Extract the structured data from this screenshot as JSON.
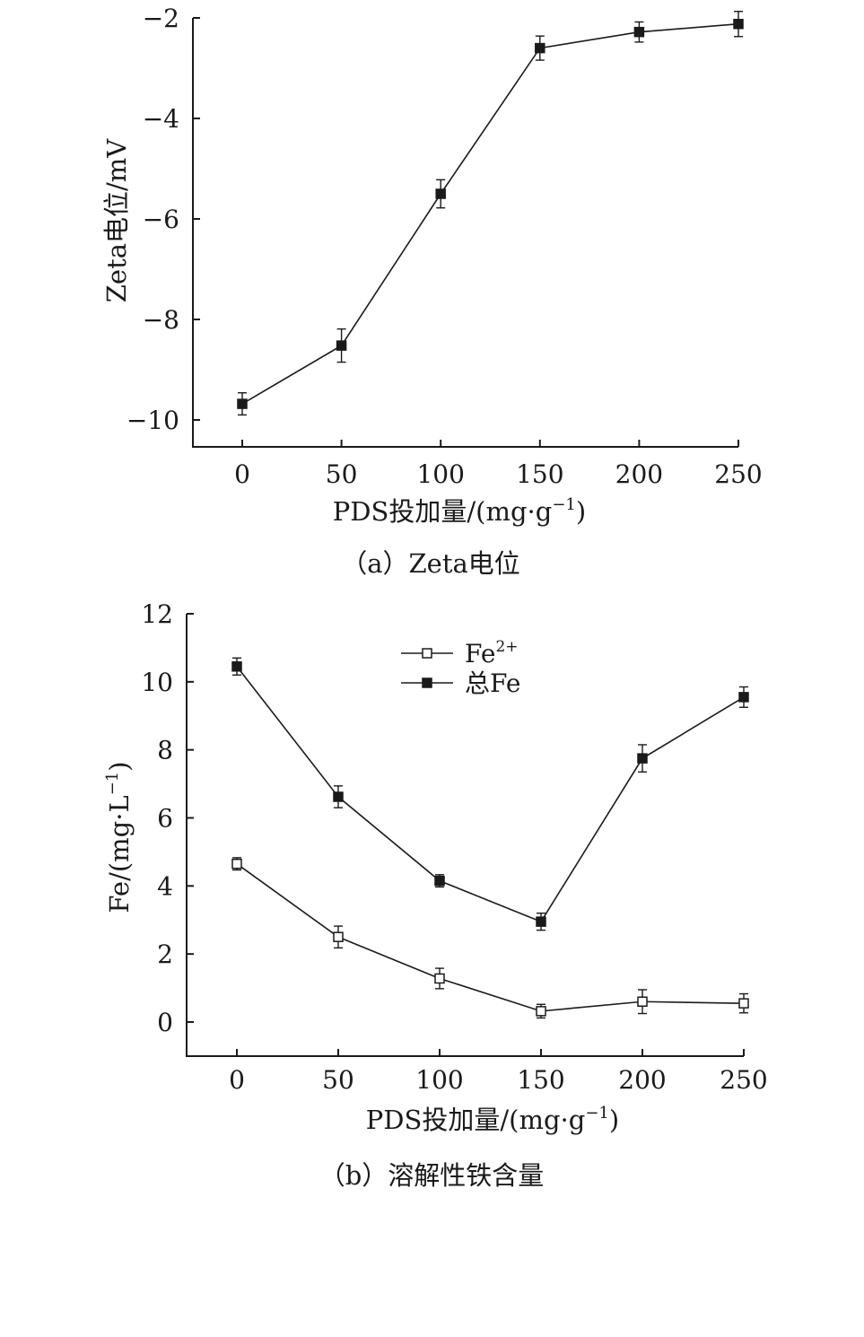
{
  "chart_data": [
    {
      "type": "line",
      "x": [
        0,
        50,
        100,
        150,
        200,
        250
      ],
      "xlim": [
        -25,
        250
      ],
      "ylim": [
        -10.5,
        -2
      ],
      "xticks": [
        0,
        50,
        100,
        150,
        200,
        250
      ],
      "yticks": [
        -10,
        -8,
        -6,
        -4,
        -2
      ],
      "x_tick_labels": [
        "0",
        "50",
        "100",
        "150",
        "200",
        "250"
      ],
      "y_tick_labels": [
        "−10",
        "−8",
        "−6",
        "−4",
        "−2"
      ],
      "xlabel": "PDS投加量/(mg·g",
      "xlabel_sup": "−1",
      "xlabel_end": ")",
      "ylabel": "Zeta电位/mV",
      "caption": "（a）Zeta电位",
      "series": [
        {
          "marker": "filled-square",
          "values": [
            -9.68,
            -8.52,
            -5.5,
            -2.6,
            -2.28,
            -2.12
          ],
          "errors": [
            0.22,
            0.33,
            0.28,
            0.24,
            0.2,
            0.25
          ]
        }
      ]
    },
    {
      "type": "line",
      "x": [
        0,
        50,
        100,
        150,
        200,
        250
      ],
      "xlim": [
        -25,
        250
      ],
      "ylim": [
        -1,
        12
      ],
      "xticks": [
        0,
        50,
        100,
        150,
        200,
        250
      ],
      "yticks": [
        0,
        2,
        4,
        6,
        8,
        10,
        12
      ],
      "x_tick_labels": [
        "0",
        "50",
        "100",
        "150",
        "200",
        "250"
      ],
      "y_tick_labels": [
        "0",
        "2",
        "4",
        "6",
        "8",
        "10",
        "12"
      ],
      "xlabel": "PDS投加量/(mg·g",
      "xlabel_sup": "−1",
      "xlabel_end": ")",
      "ylabel": "Fe/(mg·L",
      "ylabel_sup": "−1",
      "ylabel_end": ")",
      "caption": "（b）溶解性铁含量",
      "legend_position": "top-center",
      "series": [
        {
          "name": "Fe",
          "name_sup": "2+",
          "marker": "open-square",
          "values": [
            4.65,
            2.5,
            1.28,
            0.32,
            0.6,
            0.55
          ],
          "errors": [
            0.18,
            0.32,
            0.3,
            0.2,
            0.35,
            0.28
          ]
        },
        {
          "name": "总Fe",
          "marker": "filled-square",
          "values": [
            10.45,
            6.62,
            4.15,
            2.95,
            7.75,
            9.55
          ],
          "errors": [
            0.25,
            0.32,
            0.18,
            0.25,
            0.4,
            0.3
          ]
        }
      ]
    }
  ]
}
